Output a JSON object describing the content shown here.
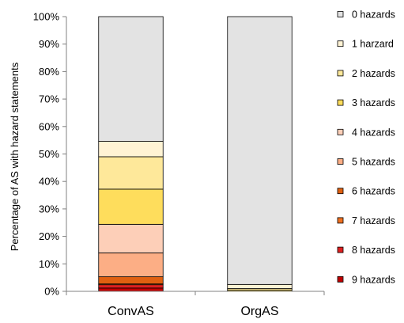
{
  "chart_data": {
    "type": "bar",
    "stacked": true,
    "ylabel": "Percentage of AS with hazard statements",
    "xlabel": "",
    "ylim": [
      0,
      100
    ],
    "yticks": [
      "0%",
      "10%",
      "20%",
      "30%",
      "40%",
      "50%",
      "60%",
      "70%",
      "80%",
      "90%",
      "100%"
    ],
    "categories": [
      "ConvAS",
      "OrgAS"
    ],
    "legend_position": "right",
    "grid": false,
    "series": [
      {
        "name": "9 hazards",
        "color": "#c00000",
        "values": [
          1.2,
          0.0
        ]
      },
      {
        "name": "8 hazards",
        "color": "#e02020",
        "values": [
          1.2,
          0.0
        ]
      },
      {
        "name": "7 hazards",
        "color": "#f07020",
        "values": [
          0.3,
          0.0
        ]
      },
      {
        "name": "6 hazards",
        "color": "#e06010",
        "values": [
          2.6,
          0.0
        ]
      },
      {
        "name": "5 hazards",
        "color": "#fcae85",
        "values": [
          8.7,
          0.0
        ]
      },
      {
        "name": "4 hazards",
        "color": "#fdcfb8",
        "values": [
          10.4,
          0.0
        ]
      },
      {
        "name": "3 hazards",
        "color": "#fedd5c",
        "values": [
          12.8,
          0.5
        ]
      },
      {
        "name": "2 hazards",
        "color": "#fee89a",
        "values": [
          11.8,
          0.5
        ]
      },
      {
        "name": "1 harzard",
        "color": "#fff3d4",
        "values": [
          5.6,
          1.5
        ]
      },
      {
        "name": "0 hazards",
        "color": "#e3e3e3",
        "values": [
          45.4,
          97.5
        ]
      }
    ]
  }
}
